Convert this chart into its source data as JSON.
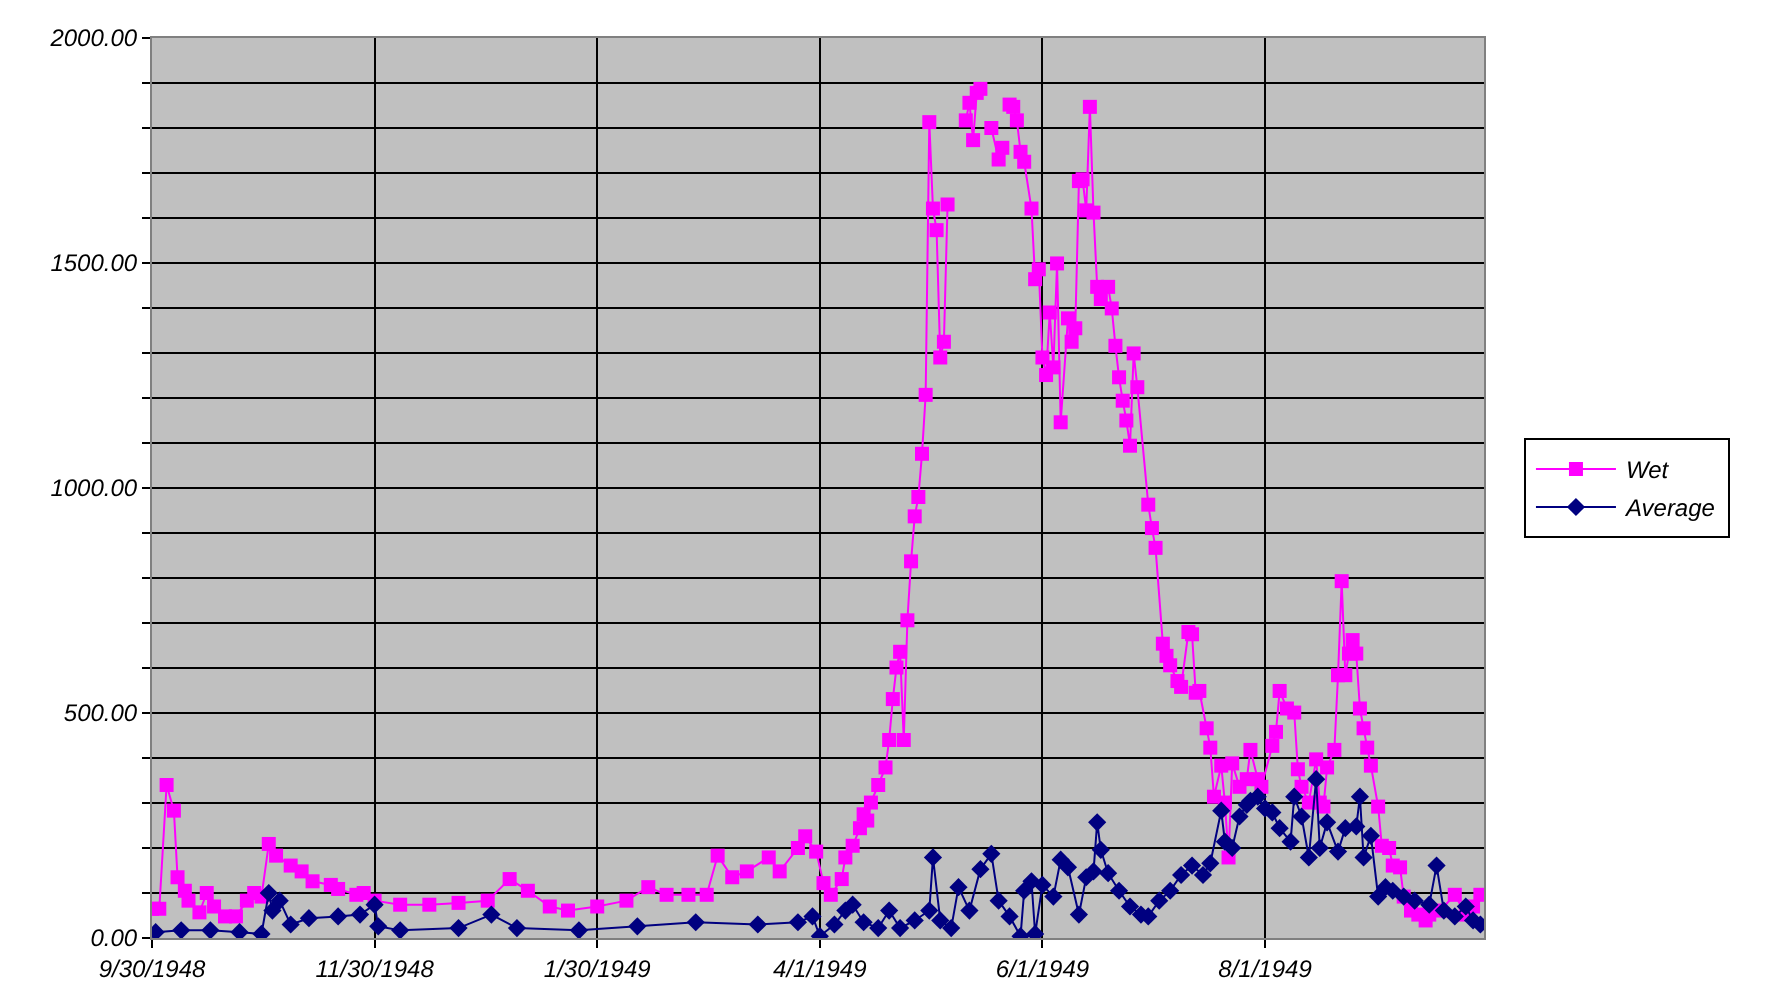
{
  "chart_data": {
    "type": "line",
    "xlim": [
      "1948-09-30",
      "1949-09-30"
    ],
    "xticks": [
      {
        "value": "1948-09-30",
        "label": "9/30/1948"
      },
      {
        "value": "1948-11-30",
        "label": "11/30/1948"
      },
      {
        "value": "1949-01-30",
        "label": "1/30/1949"
      },
      {
        "value": "1949-04-01",
        "label": "4/1/1949"
      },
      {
        "value": "1949-06-01",
        "label": "6/1/1949"
      },
      {
        "value": "1949-08-01",
        "label": "8/1/1949"
      }
    ],
    "ylim": [
      0,
      2000
    ],
    "yticks": [
      {
        "value": 0,
        "label": "0.00"
      },
      {
        "value": 100,
        "label": null
      },
      {
        "value": 200,
        "label": null
      },
      {
        "value": 300,
        "label": null
      },
      {
        "value": 400,
        "label": null
      },
      {
        "value": 500,
        "label": "500.00"
      },
      {
        "value": 600,
        "label": null
      },
      {
        "value": 700,
        "label": null
      },
      {
        "value": 800,
        "label": null
      },
      {
        "value": 900,
        "label": null
      },
      {
        "value": 1000,
        "label": "1000.00"
      },
      {
        "value": 1100,
        "label": null
      },
      {
        "value": 1200,
        "label": null
      },
      {
        "value": 1300,
        "label": null
      },
      {
        "value": 1400,
        "label": null
      },
      {
        "value": 1500,
        "label": "1500.00"
      },
      {
        "value": 1600,
        "label": null
      },
      {
        "value": 1700,
        "label": null
      },
      {
        "value": 1800,
        "label": null
      },
      {
        "value": 1900,
        "label": null
      },
      {
        "value": 2000,
        "label": "2000.00"
      }
    ],
    "grid": true,
    "legend": "right",
    "series": [
      {
        "name": "Wet",
        "color": "#ff00ff",
        "marker": "square",
        "x": [
          "1948-09-30",
          "1948-10-02",
          "1948-10-04",
          "1948-10-06",
          "1948-10-07",
          "1948-10-09",
          "1948-10-10",
          "1948-10-13",
          "1948-10-15",
          "1948-10-17",
          "1948-10-20",
          "1948-10-23",
          "1948-10-26",
          "1948-10-28",
          "1948-10-30",
          "1948-11-01",
          "1948-11-03",
          "1948-11-07",
          "1948-11-10",
          "1948-11-13",
          "1948-11-18",
          "1948-11-20",
          "1948-11-25",
          "1948-11-27",
          "1948-11-30",
          "1948-12-07",
          "1948-12-15",
          "1948-12-23",
          "1948-12-31",
          "1949-01-06",
          "1949-01-11",
          "1949-01-17",
          "1949-01-22",
          "1949-01-30",
          "1949-02-07",
          "1949-02-13",
          "1949-02-18",
          "1949-02-24",
          "1949-03-01",
          "1949-03-04",
          "1949-03-08",
          "1949-03-12",
          "1949-03-18",
          "1949-03-21",
          "1949-03-26",
          "1949-03-28",
          "1949-03-31",
          "1949-04-02",
          "1949-04-04",
          "1949-04-07",
          "1949-04-08",
          "1949-04-10",
          "1949-04-12",
          "1949-04-13",
          "1949-04-14",
          "1949-04-15",
          "1949-04-17",
          "1949-04-19",
          "1949-04-20",
          "1949-04-21",
          "1949-04-22",
          "1949-04-23",
          "1949-04-24",
          "1949-04-25",
          "1949-04-26",
          "1949-04-27",
          "1949-04-28",
          "1949-04-29",
          "1949-04-30",
          "1949-05-01",
          "1949-05-02",
          "1949-05-03",
          "1949-05-04",
          "1949-05-05",
          "1949-05-06",
          "1949-05-07",
          "1949-05-08",
          "1949-05-09",
          "1949-05-11",
          "1949-05-12",
          "1949-05-13",
          "1949-05-14",
          "1949-05-15",
          "1949-05-16",
          "1949-05-17",
          "1949-05-18",
          "1949-05-20",
          "1949-05-21",
          "1949-05-22",
          "1949-05-23",
          "1949-05-24",
          "1949-05-25",
          "1949-05-26",
          "1949-05-27",
          "1949-05-29",
          "1949-05-30",
          "1949-05-31",
          "1949-06-01",
          "1949-06-02",
          "1949-06-03",
          "1949-06-04",
          "1949-06-05",
          "1949-06-06",
          "1949-06-08",
          "1949-06-09",
          "1949-06-10",
          "1949-06-11",
          "1949-06-12",
          "1949-06-13",
          "1949-06-14",
          "1949-06-15",
          "1949-06-16",
          "1949-06-17",
          "1949-06-19",
          "1949-06-20",
          "1949-06-21",
          "1949-06-22",
          "1949-06-23",
          "1949-06-24",
          "1949-06-25",
          "1949-06-26",
          "1949-06-27",
          "1949-06-30",
          "1949-07-01",
          "1949-07-02",
          "1949-07-04",
          "1949-07-05",
          "1949-07-06",
          "1949-07-08",
          "1949-07-09",
          "1949-07-11",
          "1949-07-12",
          "1949-07-13",
          "1949-07-14",
          "1949-07-16",
          "1949-07-17",
          "1949-07-18",
          "1949-07-20",
          "1949-07-21",
          "1949-07-22",
          "1949-07-23",
          "1949-07-25",
          "1949-07-27",
          "1949-07-28",
          "1949-07-30",
          "1949-07-31",
          "1949-08-03",
          "1949-08-04",
          "1949-08-05",
          "1949-08-07",
          "1949-08-09",
          "1949-08-10",
          "1949-08-11",
          "1949-08-13",
          "1949-08-15",
          "1949-08-16",
          "1949-08-17",
          "1949-08-18",
          "1949-08-20",
          "1949-08-21",
          "1949-08-22",
          "1949-08-23",
          "1949-08-24",
          "1949-08-25",
          "1949-08-26",
          "1949-08-27",
          "1949-08-28",
          "1949-08-29",
          "1949-08-30",
          "1949-09-01",
          "1949-09-02",
          "1949-09-04",
          "1949-09-05",
          "1949-09-07",
          "1949-09-08",
          "1949-09-10",
          "1949-09-12",
          "1949-09-14",
          "1949-09-15",
          "1949-09-18",
          "1949-09-22",
          "1949-09-25",
          "1949-09-27",
          "1949-09-29"
        ],
        "values": [
          65,
          65,
          340,
          283,
          135,
          105,
          83,
          57,
          100,
          70,
          48,
          48,
          83,
          100,
          92,
          209,
          183,
          161,
          148,
          126,
          118,
          109,
          96,
          100,
          83,
          74,
          74,
          78,
          83,
          131,
          105,
          70,
          61,
          70,
          83,
          113,
          96,
          96,
          96,
          183,
          135,
          148,
          179,
          148,
          200,
          226,
          192,
          122,
          96,
          131,
          179,
          205,
          244,
          275,
          261,
          301,
          340,
          379,
          440,
          531,
          601,
          636,
          440,
          706,
          837,
          937,
          980,
          1076,
          1207,
          1813,
          1621,
          1573,
          1290,
          1325,
          1630,
          null,
          null,
          null,
          1817,
          1856,
          1773,
          1878,
          1887,
          null,
          null,
          1800,
          1730,
          1756,
          null,
          1852,
          1847,
          1817,
          1747,
          1725,
          1621,
          1464,
          1486,
          1290,
          1251,
          1390,
          1268,
          1499,
          1146,
          1377,
          1325,
          1355,
          1682,
          1686,
          1617,
          1847,
          1612,
          1447,
          1420,
          1447,
          1399,
          1316,
          1246,
          1194,
          1150,
          1094,
          1299,
          1224,
          963,
          911,
          867,
          654,
          627,
          606,
          571,
          558,
          680,
          675,
          545,
          549,
          466,
          423,
          314,
          383,
          301,
          179,
          388,
          336,
          353,
          418,
          353,
          336,
          427,
          458,
          549,
          510,
          501,
          375,
          336,
          301,
          397,
          301,
          292,
          379,
          418,
          584,
          793,
          584,
          632,
          662,
          632,
          510,
          466,
          423,
          383,
          292,
          205,
          200,
          161,
          157,
          92,
          61,
          52,
          39,
          52,
          61,
          96,
          52,
          70,
          96
        ]
      },
      {
        "name": "Average",
        "color": "#000080",
        "marker": "diamond",
        "x": [
          "1948-10-01",
          "1948-10-08",
          "1948-10-16",
          "1948-10-24",
          "1948-10-30",
          "1948-11-01",
          "1948-11-02",
          "1948-11-04",
          "1948-11-07",
          "1948-11-12",
          "1948-11-20",
          "1948-11-26",
          "1948-11-30",
          "1948-12-01",
          "1948-12-07",
          "1948-12-23",
          "1949-01-01",
          "1949-01-08",
          "1949-01-25",
          "1949-02-10",
          "1949-02-26",
          "1949-03-15",
          "1949-03-26",
          "1949-03-30",
          "1949-04-01",
          "1949-04-05",
          "1949-04-08",
          "1949-04-10",
          "1949-04-13",
          "1949-04-17",
          "1949-04-20",
          "1949-04-23",
          "1949-04-27",
          "1949-05-01",
          "1949-05-02",
          "1949-05-04",
          "1949-05-07",
          "1949-05-09",
          "1949-05-12",
          "1949-05-15",
          "1949-05-18",
          "1949-05-20",
          "1949-05-23",
          "1949-05-26",
          "1949-05-27",
          "1949-05-29",
          "1949-05-30",
          "1949-06-01",
          "1949-06-04",
          "1949-06-06",
          "1949-06-08",
          "1949-06-11",
          "1949-06-13",
          "1949-06-15",
          "1949-06-16",
          "1949-06-17",
          "1949-06-19",
          "1949-06-22",
          "1949-06-25",
          "1949-06-28",
          "1949-06-30",
          "1949-07-03",
          "1949-07-06",
          "1949-07-09",
          "1949-07-12",
          "1949-07-15",
          "1949-07-17",
          "1949-07-20",
          "1949-07-21",
          "1949-07-23",
          "1949-07-25",
          "1949-07-27",
          "1949-07-28",
          "1949-07-30",
          "1949-08-01",
          "1949-08-03",
          "1949-08-05",
          "1949-08-08",
          "1949-08-09",
          "1949-08-11",
          "1949-08-13",
          "1949-08-15",
          "1949-08-16",
          "1949-08-18",
          "1949-08-21",
          "1949-08-23",
          "1949-08-26",
          "1949-08-27",
          "1949-08-28",
          "1949-08-30",
          "1949-09-01",
          "1949-09-03",
          "1949-09-05",
          "1949-09-08",
          "1949-09-11",
          "1949-09-15",
          "1949-09-17",
          "1949-09-19",
          "1949-09-22",
          "1949-09-25",
          "1949-09-27",
          "1949-09-29"
        ],
        "values": [
          13,
          17,
          17,
          13,
          9,
          100,
          61,
          83,
          30,
          44,
          48,
          52,
          74,
          26,
          17,
          22,
          52,
          22,
          17,
          26,
          35,
          30,
          35,
          48,
          4,
          30,
          61,
          74,
          35,
          22,
          61,
          22,
          39,
          61,
          179,
          39,
          22,
          113,
          61,
          153,
          187,
          83,
          48,
          4,
          105,
          126,
          9,
          118,
          92,
          174,
          157,
          52,
          135,
          148,
          257,
          196,
          144,
          105,
          70,
          52,
          48,
          83,
          105,
          140,
          161,
          140,
          166,
          283,
          214,
          200,
          270,
          296,
          305,
          314,
          288,
          279,
          244,
          214,
          314,
          270,
          179,
          353,
          200,
          257,
          192,
          244,
          248,
          314,
          179,
          227,
          92,
          113,
          105,
          92,
          83,
          74,
          161,
          61,
          48,
          70,
          39,
          30
        ]
      }
    ]
  }
}
